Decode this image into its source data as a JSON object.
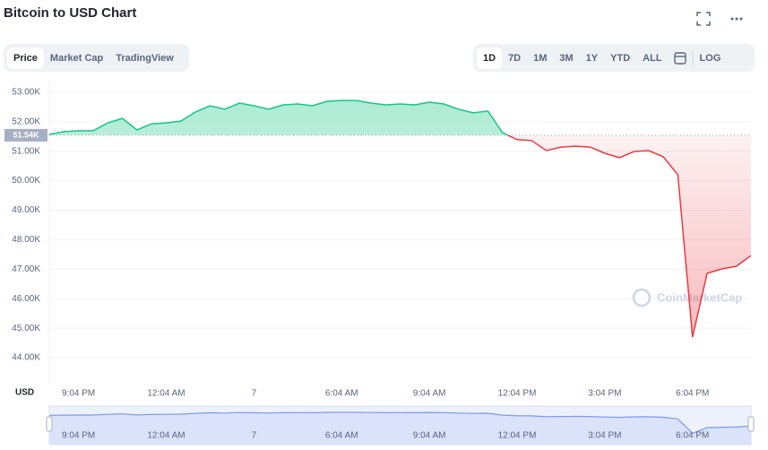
{
  "header": {
    "title": "Bitcoin to USD Chart"
  },
  "toolbar": {
    "tabs": [
      "Price",
      "Market Cap",
      "TradingView"
    ],
    "active_tab": 0,
    "ranges": [
      "1D",
      "7D",
      "1M",
      "3M",
      "1Y",
      "YTD",
      "ALL"
    ],
    "active_range": 0,
    "log": "LOG"
  },
  "chart_data": {
    "type": "line",
    "unit_label": "USD",
    "watermark": "CoinMarketCap",
    "categories": [
      null,
      null,
      "9:04 PM",
      null,
      null,
      null,
      null,
      null,
      "12:04 AM",
      null,
      null,
      null,
      null,
      null,
      "7",
      null,
      null,
      null,
      null,
      null,
      "6:04 AM",
      null,
      null,
      null,
      null,
      null,
      "9:04 AM",
      null,
      null,
      null,
      null,
      null,
      "12:04 PM",
      null,
      null,
      null,
      null,
      null,
      "3:04 PM",
      null,
      null,
      null,
      null,
      null,
      "6:04 PM",
      null,
      null,
      null,
      null
    ],
    "series": [
      {
        "name": "Price",
        "values": [
          51570,
          51660,
          51690,
          51690,
          51960,
          52110,
          51720,
          51930,
          51960,
          52020,
          52330,
          52540,
          52420,
          52630,
          52540,
          52420,
          52570,
          52600,
          52540,
          52690,
          52720,
          52720,
          52630,
          52570,
          52600,
          52570,
          52660,
          52600,
          52420,
          52300,
          52360,
          51630,
          51390,
          51360,
          51020,
          51140,
          51170,
          51140,
          50930,
          50780,
          50990,
          51020,
          50810,
          50200,
          44700,
          46860,
          47010,
          47100,
          47460
        ]
      }
    ],
    "up_color": "#16c784",
    "down_color": "#ea3943",
    "baseline": {
      "value": 51540,
      "label": "51.54K"
    },
    "ylim": [
      43120,
      53390
    ],
    "yticks": [
      {
        "value": 44000,
        "label": "44.00K"
      },
      {
        "value": 45000,
        "label": "45.00K"
      },
      {
        "value": 46000,
        "label": "46.00K"
      },
      {
        "value": 47000,
        "label": "47.00K"
      },
      {
        "value": 48000,
        "label": "48.00K"
      },
      {
        "value": 49000,
        "label": "49.00K"
      },
      {
        "value": 50000,
        "label": "50.00K"
      },
      {
        "value": 51000,
        "label": "51.00K"
      },
      {
        "value": 52000,
        "label": "52.00K"
      },
      {
        "value": 53000,
        "label": "53.00K"
      }
    ],
    "grid": true
  }
}
